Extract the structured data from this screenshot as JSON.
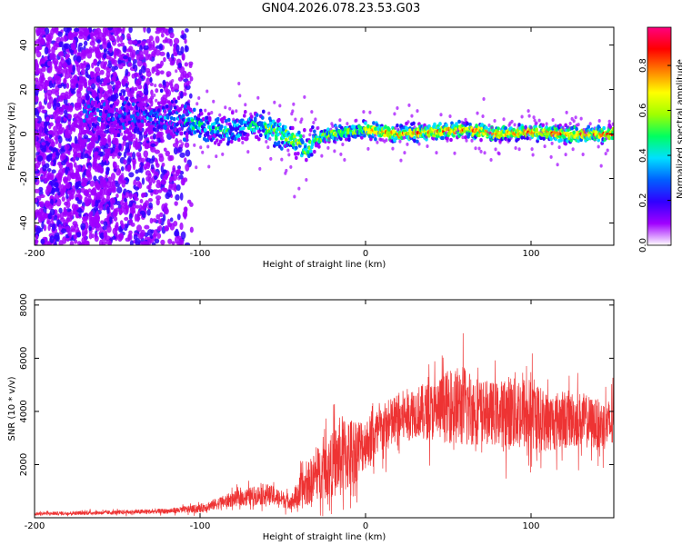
{
  "title": "GN04.2026.078.23.53.G03",
  "chart_data": [
    {
      "type": "heatmap",
      "xlabel": "Height of straight line (km)",
      "ylabel": "Frequency (Hz)",
      "xlim": [
        -200,
        150
      ],
      "ylim": [
        -50,
        48
      ],
      "xticks": [
        -200,
        -100,
        0,
        100
      ],
      "yticks": [
        -40,
        -20,
        0,
        20,
        40
      ],
      "colorbar": {
        "label": "Normalized spectral amplitude",
        "range": [
          0,
          0.97
        ],
        "ticks": [
          0.0,
          0.2,
          0.4,
          0.6,
          0.8
        ],
        "tick_labels": [
          "0.0",
          "0.2",
          "0.4",
          "0.6",
          "0.8"
        ],
        "colors": [
          "#ffffff",
          "#a000ff",
          "#3000ff",
          "#0060ff",
          "#00e0ff",
          "#00ff60",
          "#a0ff00",
          "#ffff00",
          "#ff8000",
          "#ff0000",
          "#ff0080"
        ]
      },
      "ridge": {
        "x": [
          -160,
          -140,
          -120,
          -100,
          -90,
          -80,
          -70,
          -60,
          -50,
          -40,
          -35,
          -30,
          -20,
          -10,
          0,
          20,
          40,
          60,
          80,
          100,
          120,
          150
        ],
        "frequency_hz": [
          10,
          8,
          7,
          4,
          2,
          1,
          4,
          3,
          0,
          -4,
          -8,
          -2,
          0,
          1,
          2,
          0,
          1,
          2,
          0,
          1,
          0,
          0
        ]
      }
    },
    {
      "type": "line",
      "xlabel": "Height of straight line (km)",
      "ylabel": "SNR (10 * v/v)",
      "xlim": [
        -200,
        150
      ],
      "ylim": [
        0,
        8200
      ],
      "xticks": [
        -200,
        -100,
        0,
        100
      ],
      "yticks": [
        2000,
        4000,
        6000,
        8000
      ],
      "color": "#ee3333",
      "envelope": {
        "x": [
          -200,
          -150,
          -120,
          -100,
          -80,
          -60,
          -45,
          -40,
          -30,
          -20,
          -15,
          -10,
          0,
          10,
          20,
          30,
          40,
          50,
          60,
          70,
          80,
          90,
          100,
          110,
          120,
          130,
          140,
          150
        ],
        "mean": [
          150,
          200,
          250,
          350,
          700,
          900,
          600,
          900,
          1600,
          2000,
          2300,
          2400,
          2800,
          3300,
          3700,
          4000,
          4000,
          4200,
          4200,
          4000,
          3900,
          4000,
          3900,
          3600,
          3700,
          3700,
          3500,
          3500
        ],
        "spread": [
          80,
          100,
          120,
          200,
          350,
          500,
          350,
          800,
          1200,
          1500,
          2000,
          1800,
          1200,
          1200,
          1300,
          1200,
          1400,
          1700,
          2000,
          1500,
          1500,
          1900,
          1700,
          1400,
          1400,
          1300,
          1200,
          1200
        ]
      }
    }
  ]
}
